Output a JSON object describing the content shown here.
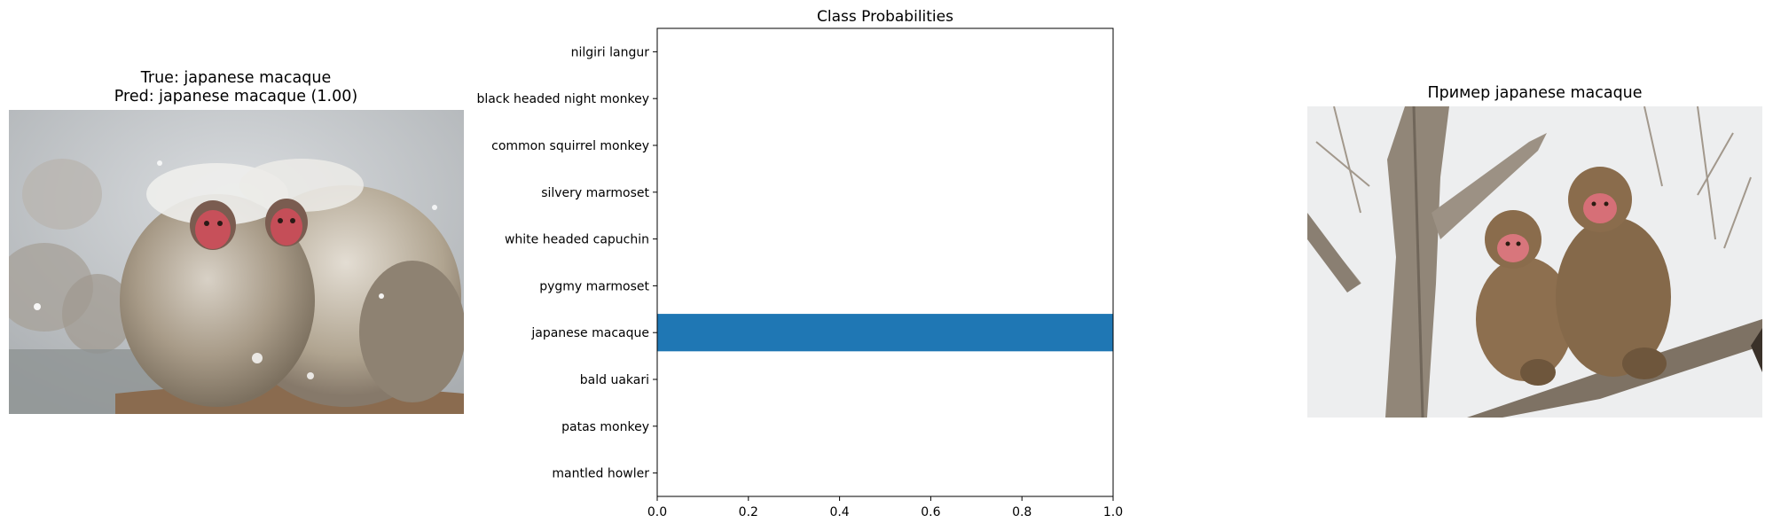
{
  "left_panel": {
    "title_line1": "True: japanese macaque",
    "title_line2": "Pred: japanese macaque (1.00)",
    "image_subject": "two japanese macaques huddled in snow"
  },
  "right_panel": {
    "title": "Пример japanese macaque",
    "image_subject": "two japanese macaques sitting on a bare tree branch"
  },
  "chart_data": {
    "type": "bar",
    "orientation": "horizontal",
    "title": "Class Probabilities",
    "categories": [
      "mantled howler",
      "patas monkey",
      "bald uakari",
      "japanese macaque",
      "pygmy marmoset",
      "white headed capuchin",
      "silvery marmoset",
      "common squirrel monkey",
      "black headed night monkey",
      "nilgiri langur"
    ],
    "values": [
      0.0,
      0.0,
      0.0,
      1.0,
      0.0,
      0.0,
      0.0,
      0.0,
      0.0,
      0.0
    ],
    "xlim": [
      0,
      1.0
    ],
    "xticks": [
      "0.0",
      "0.2",
      "0.4",
      "0.6",
      "0.8",
      "1.0"
    ],
    "xlabel": "",
    "ylabel": "",
    "bar_color": "#1f77b4",
    "grid": false
  }
}
